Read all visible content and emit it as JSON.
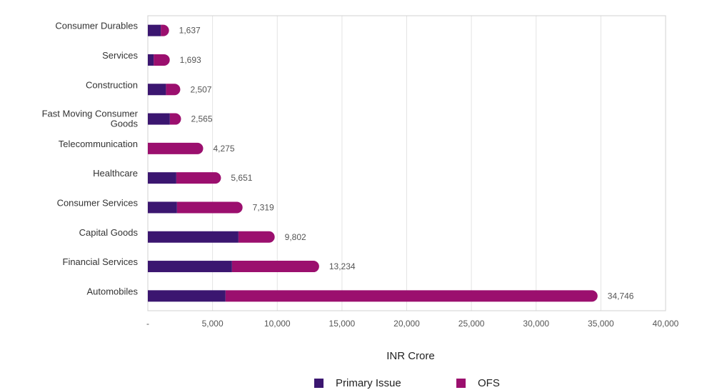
{
  "chart_data": {
    "type": "bar",
    "orientation": "horizontal",
    "stacked": true,
    "xlabel": "INR Crore",
    "xlim": [
      0,
      40000
    ],
    "x_ticks": [
      "-",
      "5,000",
      "10,000",
      "15,000",
      "20,000",
      "25,000",
      "30,000",
      "35,000",
      "40,000"
    ],
    "grid": true,
    "legend_position": "bottom",
    "categories": [
      "Consumer Durables",
      "Services",
      "Construction",
      [
        "Fast Moving Consumer",
        "Goods"
      ],
      "Telecommunication",
      "Healthcare",
      "Consumer Services",
      "Capital Goods",
      "Financial Services",
      "Automobiles"
    ],
    "series": [
      {
        "name": "Primary Issue",
        "color": "#3b1670",
        "values": [
          1000,
          450,
          1400,
          1700,
          0,
          2200,
          2250,
          7000,
          6500,
          6000
        ]
      },
      {
        "name": "OFS",
        "color": "#9b0f6e",
        "values": [
          637,
          1243,
          1107,
          865,
          4275,
          3451,
          5069,
          2802,
          6734,
          28746
        ]
      }
    ],
    "totals": [
      "1,637",
      "1,693",
      "2,507",
      "2,565",
      "4,275",
      "5,651",
      "7,319",
      "9,802",
      "13,234",
      "34,746"
    ]
  }
}
